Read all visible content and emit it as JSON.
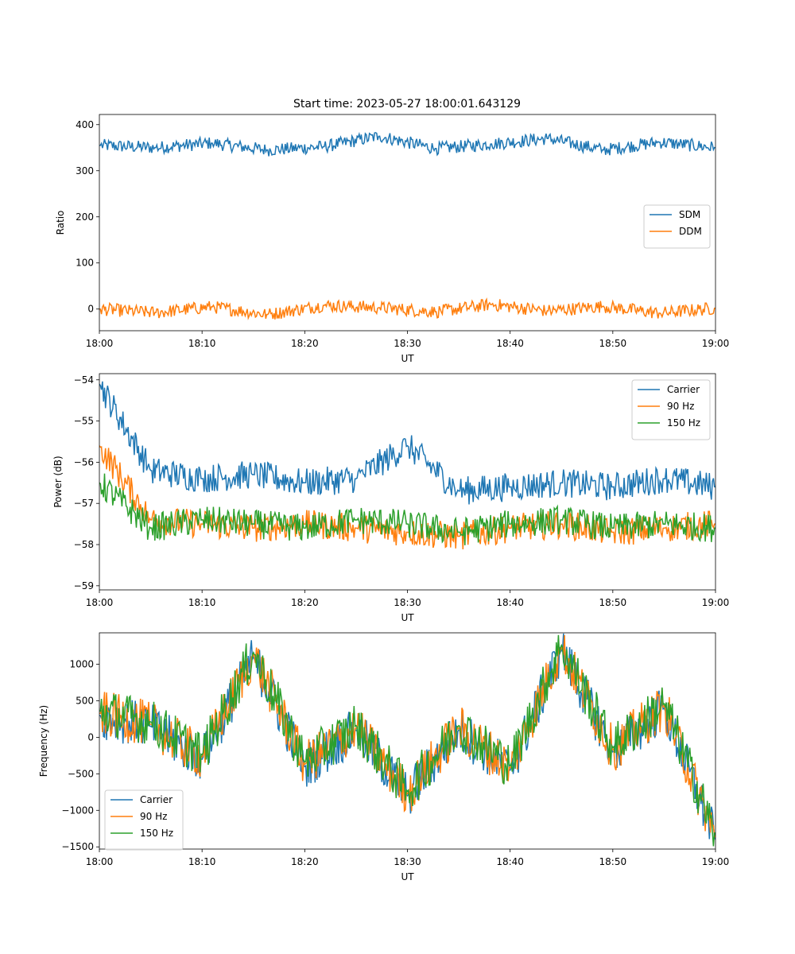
{
  "figure": {
    "title": "Start time: 2023-05-27 18:00:01.643129"
  },
  "chart_data": [
    {
      "type": "line",
      "title": "Start time: 2023-05-27 18:00:01.643129",
      "xlabel": "UT",
      "ylabel": "Ratio",
      "xlim": [
        "18:00",
        "19:00"
      ],
      "xticks": [
        "18:00",
        "18:10",
        "18:20",
        "18:30",
        "18:40",
        "18:50",
        "19:00"
      ],
      "ylim": [
        -47,
        422
      ],
      "yticks": [
        0,
        100,
        200,
        300,
        400
      ],
      "legend": "center-right",
      "grid": false,
      "x_minutes_step": 5,
      "series": [
        {
          "name": "SDM",
          "color": "#1f77b4",
          "values": [
            355,
            350,
            360,
            345,
            352,
            375,
            348,
            358,
            370,
            345,
            362,
            350
          ]
        },
        {
          "name": "DDM",
          "color": "#ff7f0e",
          "values": [
            0,
            -8,
            5,
            -12,
            8,
            3,
            -6,
            10,
            -4,
            6,
            -9,
            2
          ]
        }
      ]
    },
    {
      "type": "line",
      "xlabel": "UT",
      "ylabel": "Power (dB)",
      "xlim": [
        "18:00",
        "19:00"
      ],
      "xticks": [
        "18:00",
        "18:10",
        "18:20",
        "18:30",
        "18:40",
        "18:50",
        "19:00"
      ],
      "ylim": [
        -59.1,
        -53.85
      ],
      "yticks": [
        -59,
        -58,
        -57,
        -56,
        -55,
        -54
      ],
      "legend": "upper right",
      "grid": false,
      "x_minutes_step": 5,
      "series": [
        {
          "name": "Carrier",
          "color": "#1f77b4",
          "values": [
            -54.1,
            -56.2,
            -56.4,
            -56.3,
            -56.5,
            -56.4,
            -55.6,
            -56.7,
            -56.6,
            -56.5,
            -56.6,
            -56.4,
            -56.6
          ]
        },
        {
          "name": "90 Hz",
          "color": "#ff7f0e",
          "values": [
            -55.6,
            -57.4,
            -57.5,
            -57.6,
            -57.5,
            -57.6,
            -57.7,
            -57.8,
            -57.6,
            -57.5,
            -57.7,
            -57.6,
            -57.5
          ]
        },
        {
          "name": "150 Hz",
          "color": "#2ca02c",
          "values": [
            -56.5,
            -57.6,
            -57.4,
            -57.5,
            -57.6,
            -57.4,
            -57.5,
            -57.7,
            -57.5,
            -57.4,
            -57.6,
            -57.5,
            -57.6
          ]
        }
      ]
    },
    {
      "type": "line",
      "xlabel": "UT",
      "ylabel": "Frequency (Hz)",
      "xlim": [
        "18:00",
        "19:00"
      ],
      "xticks": [
        "18:00",
        "18:10",
        "18:20",
        "18:30",
        "18:40",
        "18:50",
        "19:00"
      ],
      "ylim": [
        -1530,
        1430
      ],
      "yticks": [
        -1500,
        -1000,
        -500,
        0,
        500,
        1000
      ],
      "legend": "lower left",
      "grid": false,
      "x_minutes_step": 5,
      "series": [
        {
          "name": "Carrier",
          "color": "#1f77b4",
          "values": [
            300,
            150,
            -300,
            1100,
            -400,
            100,
            -800,
            100,
            -450,
            1200,
            -200,
            400,
            -1400
          ]
        },
        {
          "name": "90 Hz",
          "color": "#ff7f0e",
          "values": [
            330,
            180,
            -270,
            1130,
            -370,
            130,
            -770,
            130,
            -420,
            1230,
            -170,
            430,
            -1370
          ]
        },
        {
          "name": "150 Hz",
          "color": "#2ca02c",
          "values": [
            360,
            210,
            -240,
            1160,
            -340,
            160,
            -740,
            160,
            -390,
            1260,
            -140,
            460,
            -1340
          ]
        }
      ]
    }
  ]
}
